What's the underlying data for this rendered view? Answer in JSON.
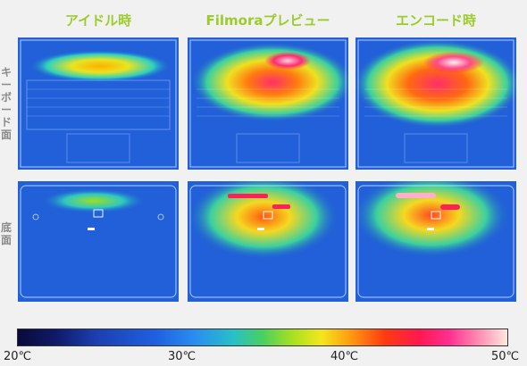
{
  "columns": [
    {
      "title": "アイドル時"
    },
    {
      "title": "Filmoraプレビュー"
    },
    {
      "title": "エンコード時"
    }
  ],
  "rows": [
    {
      "label": "キーボード面"
    },
    {
      "label": "底面"
    }
  ],
  "scale": {
    "ticks": [
      "20℃",
      "30℃",
      "40℃",
      "50℃"
    ]
  },
  "colors": {
    "title": "#9ccc2a",
    "cold": "#1f5bd4",
    "hot": "#ff1f5a"
  }
}
